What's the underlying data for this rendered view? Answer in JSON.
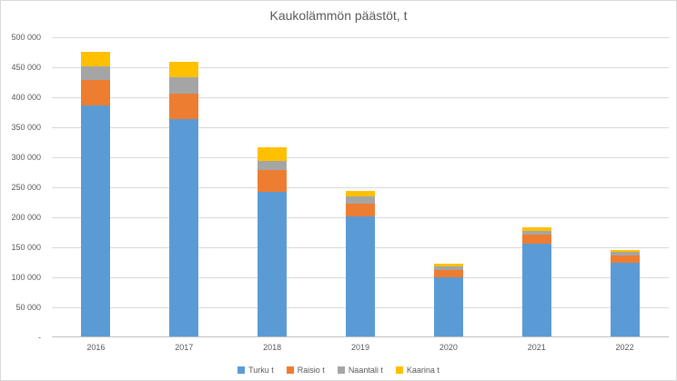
{
  "chart_data": {
    "type": "bar",
    "stacked": true,
    "title": "Kaukolämmön päästöt, t",
    "categories": [
      "2016",
      "2017",
      "2018",
      "2019",
      "2020",
      "2021",
      "2022"
    ],
    "series": [
      {
        "name": "Turku t",
        "color": "#5B9BD5",
        "values": [
          385000,
          362000,
          241000,
          200000,
          98000,
          155000,
          122000
        ]
      },
      {
        "name": "Raisio t",
        "color": "#ED7D31",
        "values": [
          43000,
          43000,
          37000,
          21000,
          12000,
          14000,
          13000
        ]
      },
      {
        "name": "Naantali t",
        "color": "#A5A5A5",
        "values": [
          22000,
          27000,
          15000,
          12000,
          6000,
          7000,
          6000
        ]
      },
      {
        "name": "Kaarina t",
        "color": "#FFC000",
        "values": [
          25000,
          25000,
          22000,
          9000,
          5000,
          6000,
          3000
        ]
      }
    ],
    "ylim": [
      0,
      500000
    ],
    "y_axis_ticks": [
      {
        "value": 0,
        "label": "-"
      },
      {
        "value": 50000,
        "label": "50 000"
      },
      {
        "value": 100000,
        "label": "100 000"
      },
      {
        "value": 150000,
        "label": "150 000"
      },
      {
        "value": 200000,
        "label": "200 000"
      },
      {
        "value": 250000,
        "label": "250 000"
      },
      {
        "value": 300000,
        "label": "300 000"
      },
      {
        "value": 350000,
        "label": "350 000"
      },
      {
        "value": 400000,
        "label": "400 000"
      },
      {
        "value": 450000,
        "label": "450 000"
      },
      {
        "value": 500000,
        "label": "500 000"
      }
    ],
    "grid": true,
    "legend_position": "bottom"
  }
}
